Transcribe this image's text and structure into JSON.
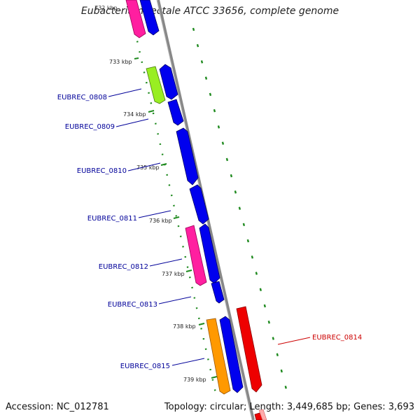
{
  "title": "Eubacterium rectale ATCC 33656, complete genome",
  "footer": {
    "accession": "Accession: NC_012781",
    "summary": "Topology: circular; Length: 3,449,685 bp; Genes: 3,693"
  },
  "top_tick_partial": "732 kbp",
  "ticks": [
    "733 kbp",
    "734 kbp",
    "735 kbp",
    "736 kbp",
    "737 kbp",
    "738 kbp",
    "739 kbp"
  ],
  "genes": [
    {
      "name": "EUBREC_0808",
      "color": "#000099"
    },
    {
      "name": "EUBREC_0809",
      "color": "#000099"
    },
    {
      "name": "EUBREC_0810",
      "color": "#000099"
    },
    {
      "name": "EUBREC_0811",
      "color": "#000099"
    },
    {
      "name": "EUBREC_0812",
      "color": "#000099"
    },
    {
      "name": "EUBREC_0813",
      "color": "#000099"
    },
    {
      "name": "EUBREC_0814",
      "color": "#cc0000"
    },
    {
      "name": "EUBREC_0815",
      "color": "#000099"
    }
  ],
  "colors": {
    "backbone": "#888888",
    "tick_green": "#1f8a1f",
    "forward_blue": "#0000ee",
    "magenta": "#ff1fa0",
    "lime": "#99ee22",
    "orange": "#ff9900",
    "reverse_red": "#ee0000"
  }
}
